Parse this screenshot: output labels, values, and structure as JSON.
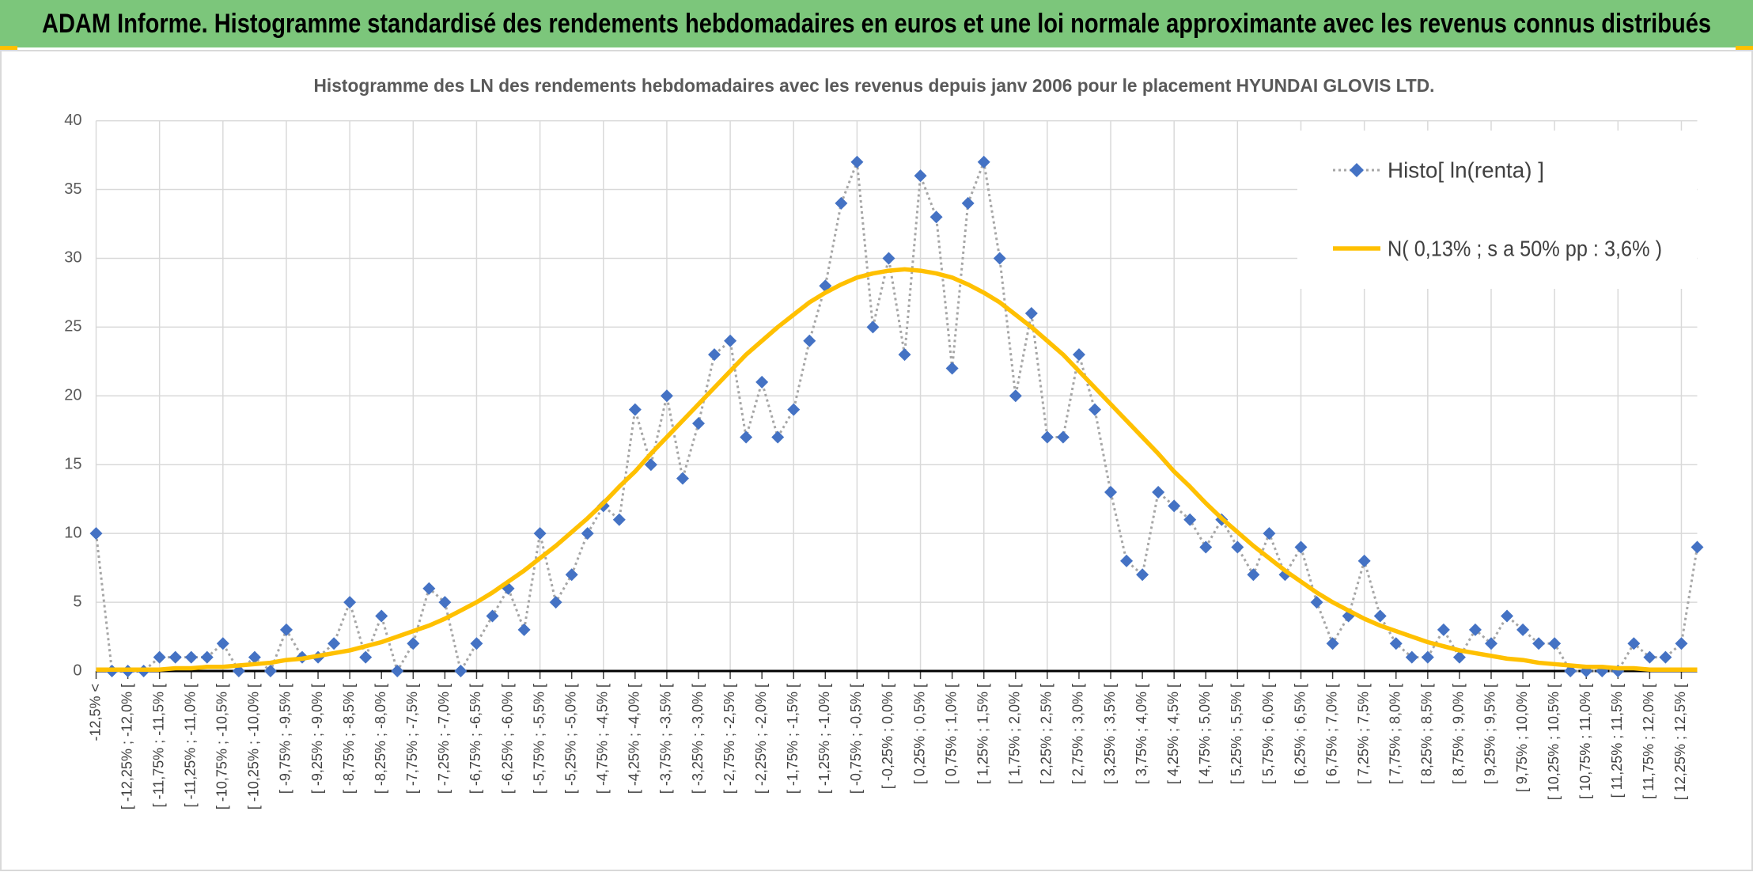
{
  "header": {
    "title": "ADAM Informe. Histogramme standardisé des rendements hebdomadaires en euros et une loi normale approximante avec les revenus connus distribués"
  },
  "chart_data": {
    "type": "line",
    "title": "Histogramme des LN des rendements hebdomadaires avec les revenus depuis janv 2006 pour le placement HYUNDAI GLOVIS LTD.",
    "categories": [
      "-12,5% <",
      null,
      "[ -12,25% ; -12,0% [",
      null,
      "[ -11,75% ; -11,5% [",
      null,
      "[ -11,25% ; -11,0% [",
      null,
      "[ -10,75% ; -10,5% [",
      null,
      "[ -10,25% ; -10,0% [",
      null,
      "[ -9,75% ; -9,5% [",
      null,
      "[ -9,25% ; -9,0% [",
      null,
      "[ -8,75% ; -8,5% [",
      null,
      "[ -8,25% ; -8,0% [",
      null,
      "[ -7,75% ; -7,5% [",
      null,
      "[ -7,25% ; -7,0% [",
      null,
      "[ -6,75% ; -6,5% [",
      null,
      "[ -6,25% ; -6,0% [",
      null,
      "[ -5,75% ; -5,5% [",
      null,
      "[ -5,25% ; -5,0% [",
      null,
      "[ -4,75% ; -4,5% [",
      null,
      "[ -4,25% ; -4,0% [",
      null,
      "[ -3,75% ; -3,5% [",
      null,
      "[ -3,25% ; -3,0% [",
      null,
      "[ -2,75% ; -2,5% [",
      null,
      "[ -2,25% ; -2,0% [",
      null,
      "[ -1,75% ; -1,5% [",
      null,
      "[ -1,25% ; -1,0% [",
      null,
      "[ -0,75% ; -0,5% [",
      null,
      "[ -0,25% ; 0,0% [",
      null,
      "[ 0,25% ; 0,5% [",
      null,
      "[ 0,75% ; 1,0% [",
      null,
      "[ 1,25% ; 1,5% [",
      null,
      "[ 1,75% ; 2,0% [",
      null,
      "[ 2,25% ; 2,5% [",
      null,
      "[ 2,75% ; 3,0% [",
      null,
      "[ 3,25% ; 3,5% [",
      null,
      "[ 3,75% ; 4,0% [",
      null,
      "[ 4,25% ; 4,5% [",
      null,
      "[ 4,75% ; 5,0% [",
      null,
      "[ 5,25% ; 5,5% [",
      null,
      "[ 5,75% ; 6,0% [",
      null,
      "[ 6,25% ; 6,5% [",
      null,
      "[ 6,75% ; 7,0% [",
      null,
      "[ 7,25% ; 7,5% [",
      null,
      "[ 7,75% ; 8,0% [",
      null,
      "[ 8,25% ; 8,5% [",
      null,
      "[ 8,75% ; 9,0% [",
      null,
      "[ 9,25% ; 9,5% [",
      null,
      "[ 9,75% ; 10,0% [",
      null,
      "[ 10,25% ; 10,5% [",
      null,
      "[ 10,75% ; 11,0% [",
      null,
      "[ 11,25% ; 11,5% [",
      null,
      "[ 11,75% ; 12,0% [",
      null,
      "[ 12,25% ; 12,5% [",
      null
    ],
    "series": [
      {
        "name": "Histo[ ln(renta) ]",
        "color": "#4472c4",
        "line_color": "#a6a6a6",
        "line_style": "dotted",
        "marker": "diamond",
        "values": [
          10,
          0,
          0,
          0,
          1,
          1,
          1,
          1,
          2,
          0,
          1,
          0,
          3,
          1,
          1,
          2,
          5,
          1,
          4,
          0,
          2,
          6,
          5,
          0,
          2,
          4,
          6,
          3,
          10,
          5,
          7,
          10,
          12,
          11,
          19,
          15,
          20,
          14,
          18,
          23,
          24,
          17,
          21,
          17,
          19,
          24,
          28,
          34,
          37,
          25,
          30,
          23,
          36,
          33,
          22,
          34,
          37,
          30,
          20,
          26,
          17,
          17,
          23,
          19,
          13,
          8,
          7,
          13,
          12,
          11,
          9,
          11,
          9,
          7,
          10,
          7,
          9,
          5,
          2,
          4,
          8,
          4,
          2,
          1,
          1,
          3,
          1,
          3,
          2,
          4,
          3,
          2,
          2,
          0,
          0,
          0,
          0,
          2,
          1,
          1,
          2,
          9
        ]
      },
      {
        "name": "N( 0,13% ; s a 50% pp : 3,6% )",
        "color": "#ffc000",
        "line_style": "solid",
        "values": [
          0.1,
          0.1,
          0.1,
          0.1,
          0.1,
          0.2,
          0.2,
          0.3,
          0.3,
          0.4,
          0.5,
          0.6,
          0.8,
          0.9,
          1.1,
          1.3,
          1.5,
          1.8,
          2.1,
          2.5,
          2.9,
          3.3,
          3.8,
          4.4,
          5.0,
          5.7,
          6.5,
          7.3,
          8.2,
          9.1,
          10.1,
          11.1,
          12.2,
          13.4,
          14.5,
          15.8,
          17.0,
          18.2,
          19.4,
          20.6,
          21.8,
          23.0,
          24.0,
          25.0,
          25.9,
          26.8,
          27.5,
          28.1,
          28.6,
          28.9,
          29.1,
          29.2,
          29.1,
          28.9,
          28.6,
          28.1,
          27.5,
          26.8,
          25.9,
          25.0,
          24.0,
          23.0,
          21.8,
          20.6,
          19.4,
          18.2,
          17.0,
          15.8,
          14.5,
          13.4,
          12.2,
          11.1,
          10.1,
          9.1,
          8.2,
          7.3,
          6.5,
          5.7,
          5.0,
          4.4,
          3.8,
          3.3,
          2.9,
          2.5,
          2.1,
          1.8,
          1.5,
          1.3,
          1.1,
          0.9,
          0.8,
          0.6,
          0.5,
          0.4,
          0.3,
          0.3,
          0.2,
          0.2,
          0.1,
          0.1,
          0.1,
          0.1
        ]
      }
    ],
    "ylim": [
      0,
      40
    ],
    "yticks": [
      0,
      5,
      10,
      15,
      20,
      25,
      30,
      35,
      40
    ],
    "grid": true,
    "legend": "upper right"
  }
}
